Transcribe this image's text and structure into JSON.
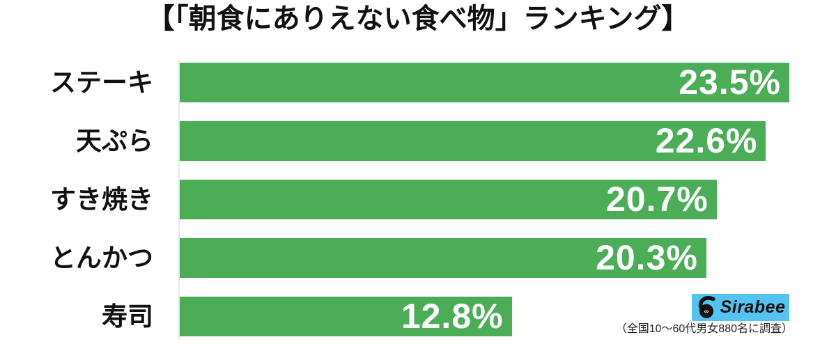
{
  "title": "【「朝食にありえない食べ物」ランキング】",
  "chart_data": {
    "type": "bar",
    "orientation": "horizontal",
    "title": "【「朝食にありえない食べ物」ランキング】",
    "categories": [
      "ステーキ",
      "天ぷら",
      "すき焼き",
      "とんかつ",
      "寿司"
    ],
    "values": [
      23.5,
      22.6,
      20.7,
      20.3,
      12.8
    ],
    "value_labels": [
      "23.5%",
      "22.6%",
      "20.7%",
      "20.3%",
      "12.8%"
    ],
    "unit": "%",
    "xlim": [
      0,
      23.5
    ],
    "grid": false,
    "legend": false,
    "bar_color": "#4cad57",
    "value_label_color": "#ffffff",
    "category_label_color": "#111111"
  },
  "branding": {
    "logo_text": "Sirabee",
    "logo_bg_color": "#54c3f0",
    "logo_text_color": "#111111",
    "logo_icon": "sirabee-mascot-icon"
  },
  "footnote": "（全国10〜60代男女880名に調査）"
}
